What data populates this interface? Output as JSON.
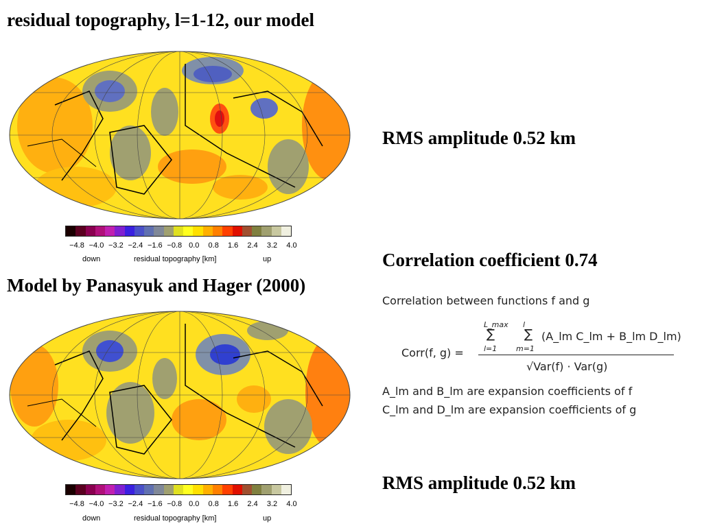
{
  "titles": {
    "top": "residual topography, l=1-12, our model",
    "bottom": "Model by Panasyuk and Hager (2000)"
  },
  "stats": {
    "rms_top": "RMS amplitude 0.52 km",
    "correlation": "Correlation coefficient 0.74",
    "rms_bottom": "RMS amplitude 0.52 km"
  },
  "colorbar": {
    "ticks": [
      "−4.8",
      "−4.0",
      "−3.2",
      "−2.4",
      "−1.6",
      "−0.8",
      "0.0",
      "0.8",
      "1.6",
      "2.4",
      "3.2",
      "4.0"
    ],
    "label_down": "down",
    "label_title": "residual topography [km]",
    "label_up": "up",
    "colors": [
      "#1a0000",
      "#5a0020",
      "#8a0050",
      "#b0107a",
      "#c020b0",
      "#8020d0",
      "#3a20e0",
      "#4a50c8",
      "#6070b0",
      "#808898",
      "#a0a070",
      "#e0e020",
      "#ffff20",
      "#ffe000",
      "#ffb000",
      "#ff8000",
      "#ff4000",
      "#e01000",
      "#a05030",
      "#808040",
      "#a0a070",
      "#c8c8a0",
      "#f0f0e0"
    ]
  },
  "formula": {
    "heading": "Correlation between functions f and g",
    "lhs": "Corr(f, g) =",
    "sum_outer_top": "L_max",
    "sum_outer_bottom": "l=1",
    "sum_inner_top": "l",
    "sum_inner_bottom": "m=1",
    "numerator": "(A_lm C_lm + B_lm D_lm)",
    "denominator": "√Var(f) · Var(g)",
    "line1": "A_lm and B_lm are expansion coefficients of f",
    "line2": "C_lm and D_lm are expansion coefficients of g"
  }
}
